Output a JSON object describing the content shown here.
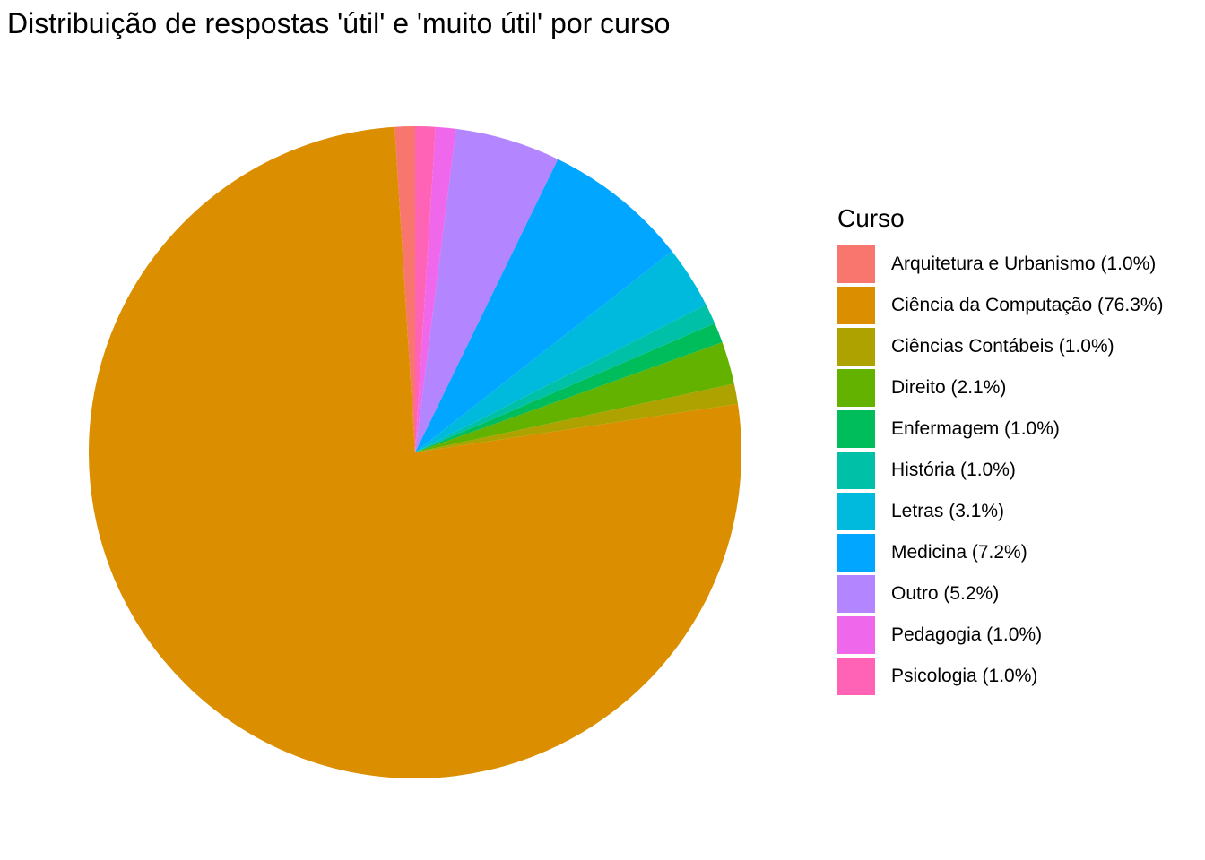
{
  "chart_data": {
    "type": "pie",
    "title": "Distribuição de respostas 'útil' e 'muito útil' por curso",
    "legend_title": "Curso",
    "legend_position": "right",
    "direction": "counterclockwise-from-top",
    "slices": [
      {
        "label": "Arquitetura e Urbanismo (1.0%)",
        "value": 1.0,
        "color": "#F8766D"
      },
      {
        "label": "Ciência da Computação (76.3%)",
        "value": 76.3,
        "color": "#DB8E00"
      },
      {
        "label": "Ciências Contábeis (1.0%)",
        "value": 1.0,
        "color": "#AEA200"
      },
      {
        "label": "Direito (2.1%)",
        "value": 2.1,
        "color": "#64B200"
      },
      {
        "label": "Enfermagem (1.0%)",
        "value": 1.0,
        "color": "#00BD5C"
      },
      {
        "label": "História (1.0%)",
        "value": 1.0,
        "color": "#00C1A7"
      },
      {
        "label": "Letras (3.1%)",
        "value": 3.1,
        "color": "#00BADE"
      },
      {
        "label": "Medicina (7.2%)",
        "value": 7.2,
        "color": "#00A6FF"
      },
      {
        "label": "Outro (5.2%)",
        "value": 5.2,
        "color": "#B385FF"
      },
      {
        "label": "Pedagogia (1.0%)",
        "value": 1.0,
        "color": "#EF67EB"
      },
      {
        "label": "Psicologia (1.0%)",
        "value": 1.0,
        "color": "#FF63B6"
      }
    ]
  }
}
